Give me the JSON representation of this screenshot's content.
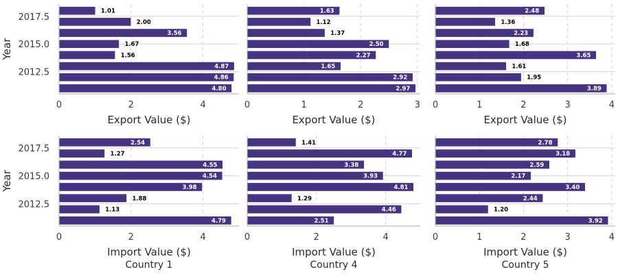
{
  "colors": {
    "bar": "#463480",
    "grid": "#d4d4d4",
    "axis": "#bdbdbd"
  },
  "y_axis": {
    "label": "Year",
    "ticks": [
      2012.5,
      2015.0,
      2017.5
    ],
    "tick_labels": [
      "2012.5",
      "2015.0",
      "2017.5"
    ]
  },
  "columns": [
    "Country 1",
    "Country 4",
    "Country 5"
  ],
  "chart_data": [
    {
      "type": "bar",
      "orientation": "horizontal",
      "row": "export",
      "column": "Country 1",
      "xlabel": "Export Value ($)",
      "ylabel": "Year",
      "years": [
        2018,
        2017,
        2016,
        2015,
        2014,
        2013,
        2012,
        2011
      ],
      "values": [
        1.01,
        2.0,
        3.56,
        1.67,
        1.56,
        4.87,
        4.86,
        4.8
      ],
      "xlim": [
        0,
        5.0
      ],
      "xticks": [
        0,
        2,
        4
      ]
    },
    {
      "type": "bar",
      "orientation": "horizontal",
      "row": "export",
      "column": "Country 4",
      "xlabel": "Export Value ($)",
      "ylabel": "",
      "years": [
        2018,
        2017,
        2016,
        2015,
        2014,
        2013,
        2012,
        2011
      ],
      "values": [
        1.63,
        1.12,
        1.37,
        2.5,
        2.27,
        1.65,
        2.92,
        2.97
      ],
      "xlim": [
        0,
        3.05
      ],
      "xticks": [
        0,
        1,
        2,
        3
      ]
    },
    {
      "type": "bar",
      "orientation": "horizontal",
      "row": "export",
      "column": "Country 5",
      "xlabel": "Export Value ($)",
      "ylabel": "",
      "years": [
        2018,
        2017,
        2016,
        2015,
        2014,
        2013,
        2012,
        2011
      ],
      "values": [
        2.48,
        1.36,
        2.23,
        1.68,
        3.65,
        1.61,
        1.95,
        3.89
      ],
      "xlim": [
        0,
        4.08
      ],
      "xticks": [
        0,
        1,
        2,
        3,
        4
      ]
    },
    {
      "type": "bar",
      "orientation": "horizontal",
      "row": "import",
      "column": "Country 1",
      "xlabel": "Import Value ($)",
      "ylabel": "Year",
      "years": [
        2018,
        2017,
        2016,
        2015,
        2014,
        2013,
        2012,
        2011
      ],
      "values": [
        2.54,
        1.27,
        4.55,
        4.54,
        3.98,
        1.88,
        1.13,
        4.79
      ],
      "xlim": [
        0,
        5.0
      ],
      "xticks": [
        0,
        2,
        4
      ]
    },
    {
      "type": "bar",
      "orientation": "horizontal",
      "row": "import",
      "column": "Country 4",
      "xlabel": "Import Value ($)",
      "ylabel": "",
      "years": [
        2018,
        2017,
        2016,
        2015,
        2014,
        2013,
        2012,
        2011
      ],
      "values": [
        1.41,
        4.77,
        3.38,
        3.93,
        4.81,
        1.29,
        4.46,
        2.51
      ],
      "xlim": [
        0,
        5.0
      ],
      "xticks": [
        0,
        2,
        4
      ]
    },
    {
      "type": "bar",
      "orientation": "horizontal",
      "row": "import",
      "column": "Country 5",
      "xlabel": "Import Value ($)",
      "ylabel": "",
      "years": [
        2018,
        2017,
        2016,
        2015,
        2014,
        2013,
        2012,
        2011
      ],
      "values": [
        2.78,
        3.18,
        2.59,
        2.17,
        3.4,
        2.44,
        1.2,
        3.92
      ],
      "xlim": [
        0,
        4.08
      ],
      "xticks": [
        0,
        1,
        2,
        3,
        4
      ]
    }
  ]
}
